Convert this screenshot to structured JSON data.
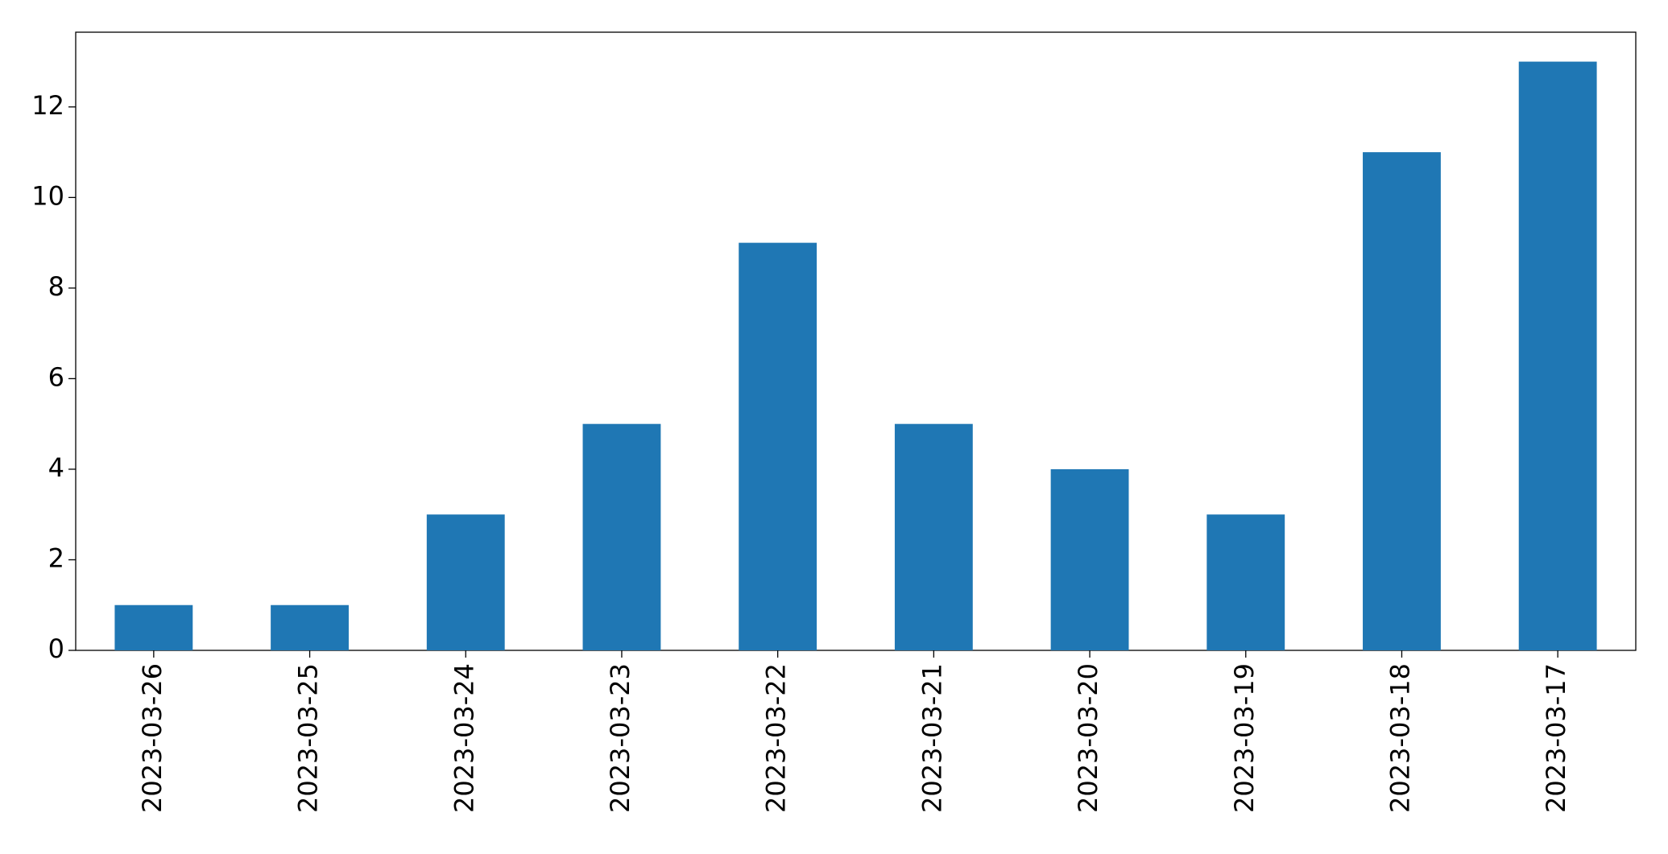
{
  "chart_data": {
    "type": "bar",
    "categories": [
      "2023-03-26",
      "2023-03-25",
      "2023-03-24",
      "2023-03-23",
      "2023-03-22",
      "2023-03-21",
      "2023-03-20",
      "2023-03-19",
      "2023-03-18",
      "2023-03-17"
    ],
    "values": [
      1,
      1,
      3,
      5,
      9,
      5,
      4,
      3,
      11,
      13
    ],
    "color": "#1f77b4",
    "ylim": [
      0,
      13.65
    ],
    "yticks": [
      0,
      2,
      4,
      6,
      8,
      10,
      12
    ],
    "grid": false
  }
}
